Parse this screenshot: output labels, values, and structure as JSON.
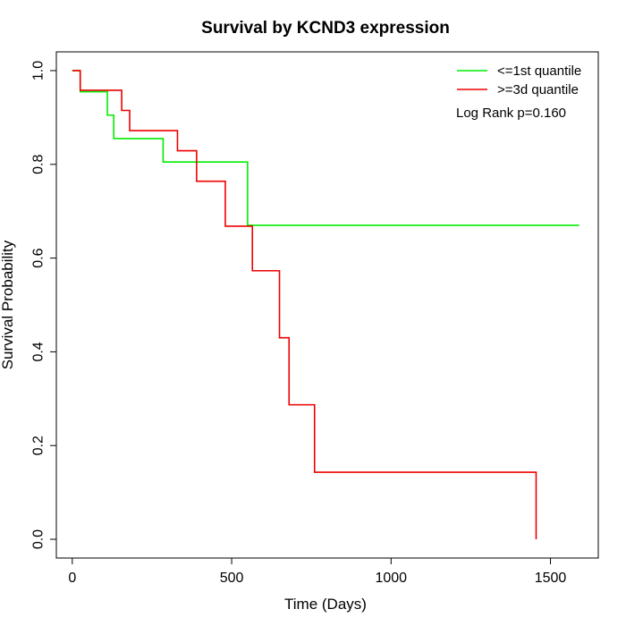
{
  "chart_data": {
    "type": "line",
    "title": "Survival by KCND3 expression",
    "xlabel": "Time (Days)",
    "ylabel": "Survival Probability",
    "xlim": [
      -50,
      1650
    ],
    "ylim": [
      -0.04,
      1.04
    ],
    "x_ticks": [
      0,
      500,
      1000,
      1500
    ],
    "x_tick_labels": [
      "0",
      "500",
      "1000",
      "1500"
    ],
    "y_ticks": [
      0.0,
      0.2,
      0.4,
      0.6,
      0.8,
      1.0
    ],
    "y_tick_labels": [
      "0.0",
      "0.2",
      "0.4",
      "0.6",
      "0.8",
      "1.0"
    ],
    "legend_position": "top-right",
    "annotation": "Log Rank p=0.160",
    "series": [
      {
        "name": "<=1st quantile",
        "color": "#00ee00",
        "step": true,
        "x": [
          0,
          25,
          110,
          130,
          285,
          550,
          1590
        ],
        "y": [
          1.0,
          0.955,
          0.905,
          0.855,
          0.805,
          0.67,
          0.67
        ]
      },
      {
        "name": ">=3d quantile",
        "color": "#ee0000",
        "step": true,
        "x": [
          0,
          25,
          155,
          180,
          330,
          390,
          480,
          565,
          650,
          680,
          760,
          1455,
          1455
        ],
        "y": [
          1.0,
          0.958,
          0.915,
          0.872,
          0.829,
          0.764,
          0.668,
          0.573,
          0.43,
          0.287,
          0.143,
          0.143,
          0.0
        ]
      }
    ]
  }
}
